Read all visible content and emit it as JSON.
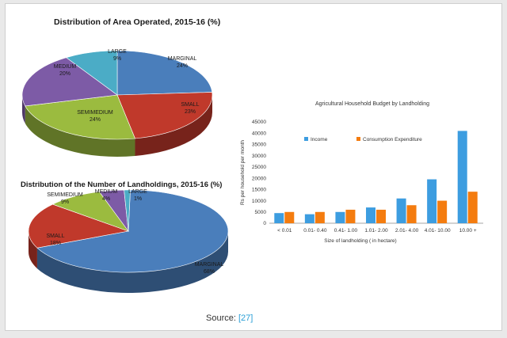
{
  "colors": {
    "marginal": "#4a7ebb",
    "small": "#c0392b",
    "semimedium": "#9bbb3f",
    "medium": "#7d5ba6",
    "large": "#4bacc6",
    "income": "#3d9de0",
    "consumption": "#f47c0f"
  },
  "chart_data": [
    {
      "type": "pie",
      "title": "Distribution of Area Operated, 2015-16 (%)",
      "slices": [
        {
          "name": "MARGINAL",
          "value": 24,
          "label": "24%"
        },
        {
          "name": "SMALL",
          "value": 23,
          "label": "23%"
        },
        {
          "name": "SEMIMEDIUM",
          "value": 24,
          "label": "24%"
        },
        {
          "name": "MEDIUM",
          "value": 20,
          "label": "20%"
        },
        {
          "name": "LARGE",
          "value": 9,
          "label": "9%"
        }
      ]
    },
    {
      "type": "pie",
      "title": "Distribution of the Number of Landholdings, 2015-16 (%)",
      "slices": [
        {
          "name": "MARGINAL",
          "value": 68,
          "label": "68%"
        },
        {
          "name": "SMALL",
          "value": 18,
          "label": "18%"
        },
        {
          "name": "SEMIMEDIUM",
          "value": 9,
          "label": "9%"
        },
        {
          "name": "MEDIUM",
          "value": 4,
          "label": "4%"
        },
        {
          "name": "LARGE",
          "value": 1,
          "label": "1%"
        }
      ]
    },
    {
      "type": "bar",
      "title": "Agricultural Household Budget by Landholding",
      "xlabel": "Size of landholding ( in hectare)",
      "ylabel": "Rs per household per month",
      "ylim": [
        0,
        45000
      ],
      "yticks": [
        "0",
        "5000",
        "10000",
        "15000",
        "20000",
        "25000",
        "30000",
        "35000",
        "40000",
        "45000"
      ],
      "categories": [
        "< 0.01",
        "0.01- 0.40",
        "0.41- 1.00",
        "1.01- 2.00",
        "2.01- 4.00",
        "4.01- 10.00",
        "10.00 +"
      ],
      "legend": "top-left",
      "series": [
        {
          "name": "Income",
          "values": [
            4500,
            4000,
            5000,
            7000,
            11000,
            19500,
            41000
          ]
        },
        {
          "name": "Consumption Expenditure",
          "values": [
            5000,
            5000,
            6000,
            6000,
            8000,
            10000,
            14000
          ]
        }
      ]
    }
  ],
  "source": {
    "label": "Source:",
    "ref": "[27]"
  }
}
